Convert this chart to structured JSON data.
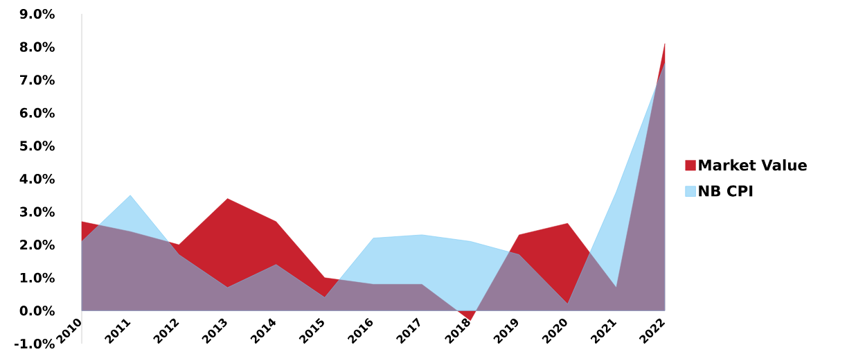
{
  "chart_data": {
    "type": "area",
    "categories": [
      "2010",
      "2011",
      "2012",
      "2013",
      "2014",
      "2015",
      "2016",
      "2017",
      "2018",
      "2019",
      "2020",
      "2021",
      "2022"
    ],
    "series": [
      {
        "name": "Market Value",
        "color": "#c8222e",
        "values": [
          2.7,
          2.4,
          2.0,
          3.4,
          2.7,
          1.0,
          0.8,
          0.8,
          -0.3,
          2.3,
          2.65,
          0.7,
          8.1
        ]
      },
      {
        "name": "NB CPI",
        "color": "#6cc4f4",
        "values": [
          2.1,
          3.5,
          1.7,
          0.7,
          1.4,
          0.4,
          2.2,
          2.3,
          2.1,
          1.7,
          0.2,
          3.6,
          7.5
        ]
      }
    ],
    "ylim": [
      -1,
      9
    ],
    "yticks": [
      {
        "value": -1,
        "label": "-1.0%"
      },
      {
        "value": 0,
        "label": "0.0%"
      },
      {
        "value": 1,
        "label": "1.0%"
      },
      {
        "value": 2,
        "label": "2.0%"
      },
      {
        "value": 3,
        "label": "3.0%"
      },
      {
        "value": 4,
        "label": "4.0%"
      },
      {
        "value": 5,
        "label": "5.0%"
      },
      {
        "value": 6,
        "label": "6.0%"
      },
      {
        "value": 7,
        "label": "7.0%"
      },
      {
        "value": 8,
        "label": "8.0%"
      },
      {
        "value": 9,
        "label": "9.0%"
      }
    ],
    "grid": false,
    "legend": "right"
  }
}
